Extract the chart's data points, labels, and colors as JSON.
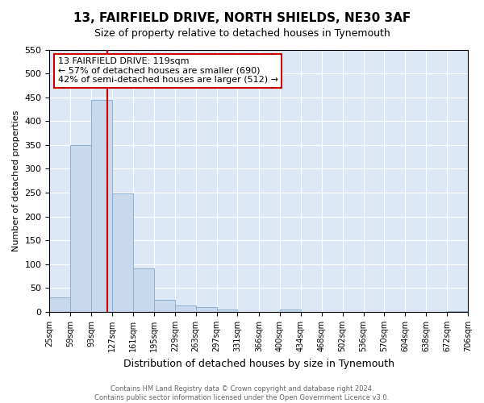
{
  "title": "13, FAIRFIELD DRIVE, NORTH SHIELDS, NE30 3AF",
  "subtitle": "Size of property relative to detached houses in Tynemouth",
  "xlabel": "Distribution of detached houses by size in Tynemouth",
  "ylabel": "Number of detached properties",
  "bin_edges": [
    25,
    59,
    93,
    127,
    161,
    195,
    229,
    263,
    297,
    331,
    366,
    400,
    434,
    468,
    502,
    536,
    570,
    604,
    638,
    672,
    706
  ],
  "bar_heights": [
    30,
    350,
    445,
    248,
    92,
    25,
    13,
    10,
    5,
    0,
    0,
    5,
    0,
    0,
    0,
    0,
    0,
    0,
    0,
    2
  ],
  "bar_color": "#c8d8ed",
  "bar_edgecolor": "#8db0d0",
  "vline_x": 119,
  "vline_color": "#cc0000",
  "ylim": [
    0,
    550
  ],
  "yticks": [
    0,
    50,
    100,
    150,
    200,
    250,
    300,
    350,
    400,
    450,
    500,
    550
  ],
  "annotation_line1": "13 FAIRFIELD DRIVE: 119sqm",
  "annotation_line2": "← 57% of detached houses are smaller (690)",
  "annotation_line3": "42% of semi-detached houses are larger (512) →",
  "annotation_box_facecolor": "#ffffff",
  "annotation_box_edgecolor": "#cc0000",
  "footer_line1": "Contains HM Land Registry data © Crown copyright and database right 2024.",
  "footer_line2": "Contains public sector information licensed under the Open Government Licence v3.0.",
  "fig_facecolor": "#ffffff",
  "axes_facecolor": "#dce8f5",
  "grid_color": "#ffffff",
  "title_fontsize": 11,
  "subtitle_fontsize": 9,
  "xlabel_fontsize": 9,
  "ylabel_fontsize": 8,
  "annot_fontsize": 8,
  "footer_fontsize": 6,
  "xtick_fontsize": 7
}
